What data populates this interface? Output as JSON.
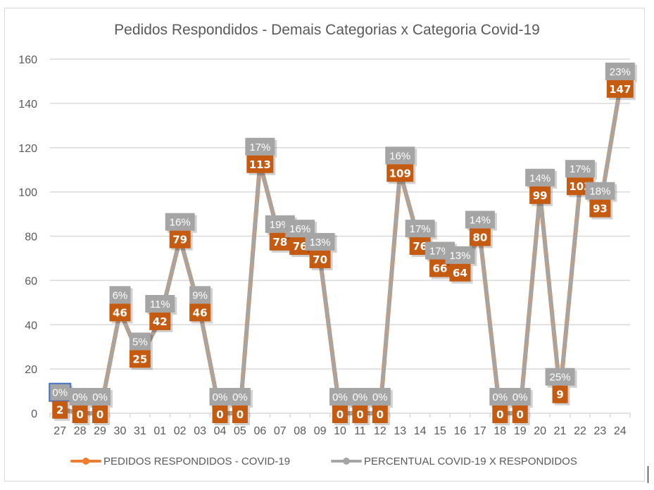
{
  "chart_data": {
    "type": "line",
    "title": "Pedidos Respondidos - Demais Categorias x Categoria Covid-19",
    "xlabel": "",
    "ylabel": "",
    "ylim": [
      0,
      160
    ],
    "yticks": [
      "0",
      "20",
      "40",
      "60",
      "80",
      "100",
      "120",
      "140",
      "160"
    ],
    "grid": true,
    "legend_position": "bottom",
    "categories": [
      "27",
      "28",
      "29",
      "30",
      "31",
      "01",
      "02",
      "03",
      "04",
      "05",
      "06",
      "07",
      "08",
      "09",
      "10",
      "11",
      "12",
      "13",
      "14",
      "15",
      "16",
      "17",
      "18",
      "19",
      "20",
      "21",
      "22",
      "23",
      "24"
    ],
    "series": [
      {
        "name": "PEDIDOS RESPONDIDOS - COVID-19",
        "color": "#ED7D31",
        "label_color": "#C55A11",
        "values": [
          2,
          0,
          0,
          46,
          25,
          42,
          79,
          46,
          0,
          0,
          113,
          78,
          76,
          70,
          0,
          0,
          0,
          109,
          76,
          66,
          64,
          80,
          0,
          0,
          99,
          9,
          103,
          93,
          147
        ],
        "labels": [
          "2",
          "0",
          "0",
          "46",
          "25",
          "42",
          "79",
          "46",
          "0",
          "0",
          "113",
          "78",
          "76",
          "70",
          "0",
          "0",
          "0",
          "109",
          "76",
          "66",
          "64",
          "80",
          "0",
          "0",
          "99",
          "9",
          "103",
          "93",
          "147"
        ]
      },
      {
        "name": "PERCENTUAL COVID-19 X RESPONDIDOS",
        "color": "#A5A5A5",
        "label_color": "#A5A5A5",
        "values_percent": [
          0,
          0,
          0,
          6,
          5,
          11,
          16,
          9,
          0,
          0,
          17,
          19,
          16,
          13,
          0,
          0,
          0,
          16,
          17,
          17,
          13,
          14,
          0,
          0,
          14,
          25,
          17,
          18,
          23
        ],
        "labels": [
          "0%",
          "0%",
          "0%",
          "6%",
          "5%",
          "11%",
          "16%",
          "9%",
          "0%",
          "0%",
          "17%",
          "19%",
          "16%",
          "13%",
          "0%",
          "0%",
          "0%",
          "16%",
          "17%",
          "17%",
          "13%",
          "14%",
          "0%",
          "0%",
          "14%",
          "25%",
          "17%",
          "18%",
          "23%"
        ]
      }
    ]
  },
  "legend": {
    "items": [
      {
        "label": "PEDIDOS RESPONDIDOS - COVID-19",
        "color": "#ED7D31"
      },
      {
        "label": "PERCENTUAL COVID-19 X RESPONDIDOS",
        "color": "#A5A5A5"
      }
    ]
  },
  "selection": {
    "selected_label_index": 0,
    "series": "PERCENTUAL COVID-19 X RESPONDIDOS",
    "outline_color": "#4472C4"
  }
}
